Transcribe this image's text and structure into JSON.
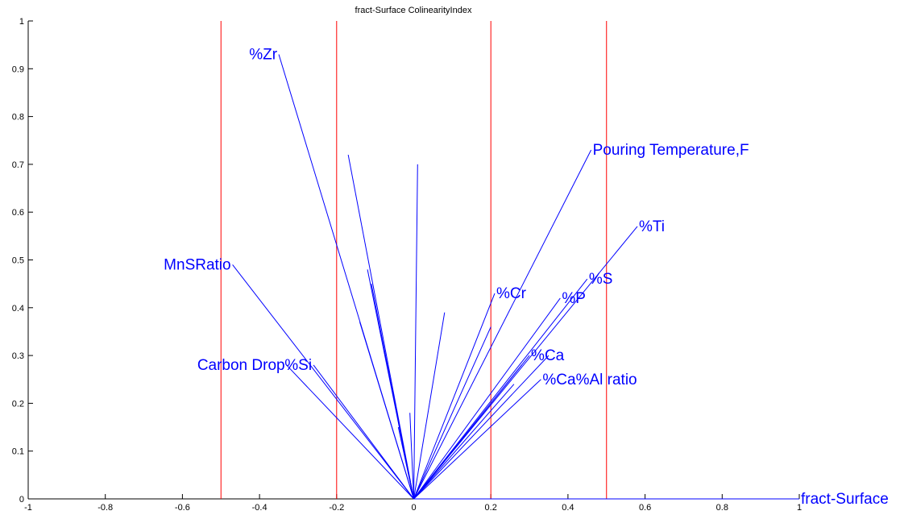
{
  "chart_data": {
    "type": "line",
    "title": "fract-Surface ColinearityIndex",
    "xlabel": "",
    "ylabel": "",
    "xlim": [
      -1,
      1
    ],
    "ylim": [
      0,
      1
    ],
    "xticks": [
      "-1",
      "-0.8",
      "-0.6",
      "-0.4",
      "-0.2",
      "0",
      "0.2",
      "0.4",
      "0.6",
      "0.8",
      "1"
    ],
    "yticks": [
      "0",
      "0.1",
      "0.2",
      "0.3",
      "0.4",
      "0.5",
      "0.6",
      "0.7",
      "0.8",
      "0.9",
      "1"
    ],
    "grid": false,
    "reference_lines": {
      "orientation": "vertical",
      "color": "#ff0000",
      "x": [
        -0.5,
        -0.2,
        0.2,
        0.5
      ]
    },
    "origin": [
      0,
      0
    ],
    "vector_color": "#0000ff",
    "vectors": [
      {
        "label": "%Zr",
        "x": -0.35,
        "y": 0.93
      },
      {
        "label": "MnSRatio",
        "x": -0.47,
        "y": 0.49
      },
      {
        "label": "Carbon Drop",
        "x": -0.33,
        "y": 0.28
      },
      {
        "label": "%Si",
        "x": -0.26,
        "y": 0.28
      },
      {
        "label": "Pouring Temperature,F",
        "x": 0.46,
        "y": 0.73
      },
      {
        "label": "%Ti",
        "x": 0.58,
        "y": 0.57
      },
      {
        "label": "%S",
        "x": 0.45,
        "y": 0.46
      },
      {
        "label": "%P",
        "x": 0.38,
        "y": 0.42
      },
      {
        "label": "%Cr",
        "x": 0.21,
        "y": 0.43
      },
      {
        "label": "%Ca",
        "x": 0.3,
        "y": 0.3
      },
      {
        "label": "%Ca%Al ratio",
        "x": 0.33,
        "y": 0.25
      },
      {
        "label": "fract-Surface",
        "x": 1.0,
        "y": 0.0
      },
      {
        "label": "",
        "x": -0.17,
        "y": 0.72
      },
      {
        "label": "",
        "x": 0.01,
        "y": 0.7
      },
      {
        "label": "",
        "x": -0.12,
        "y": 0.48
      },
      {
        "label": "",
        "x": -0.11,
        "y": 0.45
      },
      {
        "label": "",
        "x": -0.14,
        "y": 0.37
      },
      {
        "label": "",
        "x": 0.08,
        "y": 0.39
      },
      {
        "label": "",
        "x": -0.01,
        "y": 0.18
      },
      {
        "label": "",
        "x": -0.04,
        "y": 0.15
      },
      {
        "label": "",
        "x": 0.2,
        "y": 0.36
      },
      {
        "label": "",
        "x": 0.35,
        "y": 0.3
      },
      {
        "label": "",
        "x": 0.28,
        "y": 0.28
      },
      {
        "label": "",
        "x": 0.26,
        "y": 0.24
      }
    ]
  }
}
